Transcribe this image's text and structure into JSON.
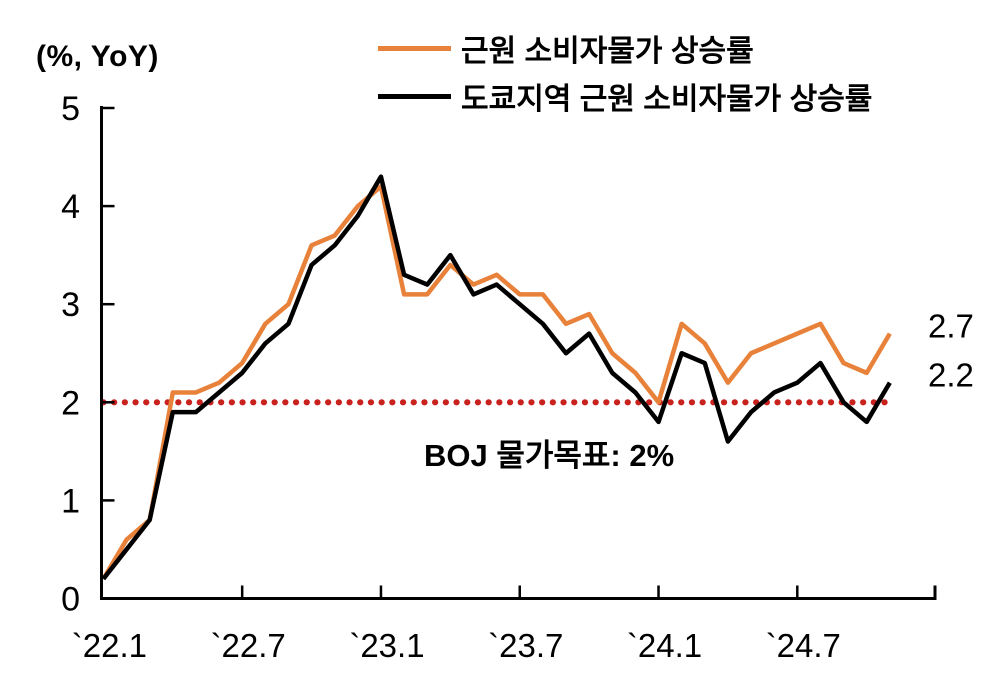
{
  "chart_data": {
    "type": "line",
    "title": "",
    "y_axis_label": "(%, YoY)",
    "x": [
      "2022-01",
      "2022-02",
      "2022-03",
      "2022-04",
      "2022-05",
      "2022-06",
      "2022-07",
      "2022-08",
      "2022-09",
      "2022-10",
      "2022-11",
      "2022-12",
      "2023-01",
      "2023-02",
      "2023-03",
      "2023-04",
      "2023-05",
      "2023-06",
      "2023-07",
      "2023-08",
      "2023-09",
      "2023-10",
      "2023-11",
      "2023-12",
      "2024-01",
      "2024-02",
      "2024-03",
      "2024-04",
      "2024-05",
      "2024-06",
      "2024-07",
      "2024-08",
      "2024-09",
      "2024-10",
      "2024-11"
    ],
    "series": [
      {
        "name": "근원 소비자물가 상승률",
        "color": "#E8823A",
        "values": [
          0.2,
          0.6,
          0.8,
          2.1,
          2.1,
          2.2,
          2.4,
          2.8,
          3.0,
          3.6,
          3.7,
          4.0,
          4.2,
          3.1,
          3.1,
          3.4,
          3.2,
          3.3,
          3.1,
          3.1,
          2.8,
          2.9,
          2.5,
          2.3,
          2.0,
          2.8,
          2.6,
          2.2,
          2.5,
          2.6,
          2.7,
          2.8,
          2.4,
          2.3,
          2.7
        ]
      },
      {
        "name": "도쿄지역 근원 소비자물가 상승률",
        "color": "#000000",
        "values": [
          0.2,
          0.5,
          0.8,
          1.9,
          1.9,
          2.1,
          2.3,
          2.6,
          2.8,
          3.4,
          3.6,
          3.9,
          4.3,
          3.3,
          3.2,
          3.5,
          3.1,
          3.2,
          3.0,
          2.8,
          2.5,
          2.7,
          2.3,
          2.1,
          1.8,
          2.5,
          2.4,
          1.6,
          1.9,
          2.1,
          2.2,
          2.4,
          2.0,
          1.8,
          2.2
        ]
      }
    ],
    "x_tick_labels": [
      "`22.1",
      "`22.7",
      "`23.1",
      "`23.7",
      "`24.1",
      "`24.7"
    ],
    "x_tick_indices": [
      0,
      6,
      12,
      18,
      24,
      30
    ],
    "y_ticks": [
      0,
      1,
      2,
      3,
      4,
      5
    ],
    "ylim": [
      0,
      5
    ],
    "grid": false,
    "legend_position": "top",
    "reference_line": {
      "value": 2,
      "label": "BOJ 물가목표: 2%",
      "color": "#C9211E",
      "style": "dotted"
    },
    "end_labels": [
      {
        "text": "2.7",
        "series": 0
      },
      {
        "text": "2.2",
        "series": 1
      }
    ]
  }
}
